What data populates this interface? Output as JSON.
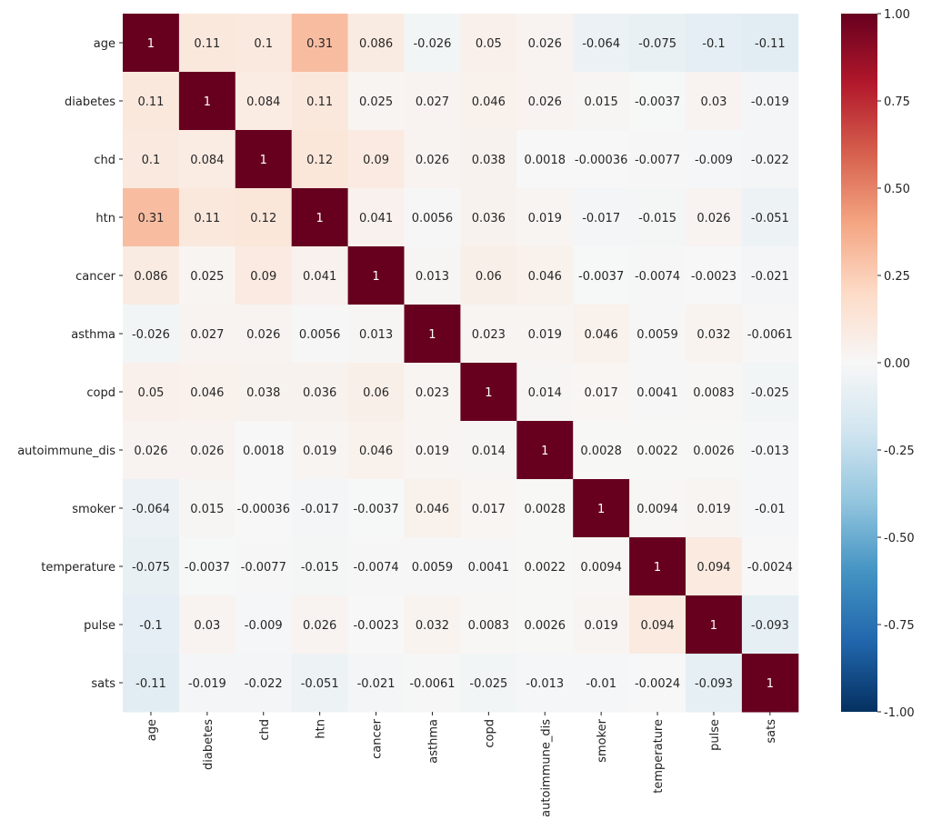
{
  "chart_data": {
    "type": "heatmap",
    "title": "",
    "xlabel": "",
    "ylabel": "",
    "labels": [
      "age",
      "diabetes",
      "chd",
      "htn",
      "cancer",
      "asthma",
      "copd",
      "autoimmune_dis",
      "smoker",
      "temperature",
      "pulse",
      "sats"
    ],
    "matrix": [
      [
        1,
        0.11,
        0.1,
        0.31,
        0.086,
        -0.026,
        0.05,
        0.026,
        -0.064,
        -0.075,
        -0.1,
        -0.11
      ],
      [
        0.11,
        1,
        0.084,
        0.11,
        0.025,
        0.027,
        0.046,
        0.026,
        0.015,
        -0.0037,
        0.03,
        -0.019
      ],
      [
        0.1,
        0.084,
        1,
        0.12,
        0.09,
        0.026,
        0.038,
        0.0018,
        -0.00036,
        -0.0077,
        -0.009,
        -0.022
      ],
      [
        0.31,
        0.11,
        0.12,
        1,
        0.041,
        0.0056,
        0.036,
        0.019,
        -0.017,
        -0.015,
        0.026,
        -0.051
      ],
      [
        0.086,
        0.025,
        0.09,
        0.041,
        1,
        0.013,
        0.06,
        0.046,
        -0.0037,
        -0.0074,
        -0.0023,
        -0.021
      ],
      [
        -0.026,
        0.027,
        0.026,
        0.0056,
        0.013,
        1,
        0.023,
        0.019,
        0.046,
        0.0059,
        0.032,
        -0.0061
      ],
      [
        0.05,
        0.046,
        0.038,
        0.036,
        0.06,
        0.023,
        1,
        0.014,
        0.017,
        0.0041,
        0.0083,
        -0.025
      ],
      [
        0.026,
        0.026,
        0.0018,
        0.019,
        0.046,
        0.019,
        0.014,
        1,
        0.0028,
        0.0022,
        0.0026,
        -0.013
      ],
      [
        -0.064,
        0.015,
        -0.00036,
        -0.017,
        -0.0037,
        0.046,
        0.017,
        0.0028,
        1,
        0.0094,
        0.019,
        -0.01
      ],
      [
        -0.075,
        -0.0037,
        -0.0077,
        -0.015,
        -0.0074,
        0.0059,
        0.0041,
        0.0022,
        0.0094,
        1,
        0.094,
        -0.0024
      ],
      [
        -0.1,
        0.03,
        -0.009,
        0.026,
        -0.0023,
        0.032,
        0.0083,
        0.0026,
        0.019,
        0.094,
        1,
        -0.093
      ],
      [
        -0.11,
        -0.019,
        -0.022,
        -0.051,
        -0.021,
        -0.0061,
        -0.025,
        -0.013,
        -0.01,
        -0.0024,
        -0.093,
        1
      ]
    ],
    "annotated": true,
    "colormap": "RdBu_r",
    "colormap_stops": [
      "#053061",
      "#2166ac",
      "#4393c3",
      "#92c5de",
      "#d1e5f0",
      "#f7f7f7",
      "#fddbc7",
      "#f4a582",
      "#d6604d",
      "#b2182b",
      "#67001f"
    ],
    "vmin": -1,
    "vmax": 1,
    "colorbar_ticks": [
      "-1.00",
      "-0.75",
      "-0.50",
      "-0.25",
      "0.00",
      "0.25",
      "0.50",
      "0.75",
      "1.00"
    ],
    "grid": false
  }
}
